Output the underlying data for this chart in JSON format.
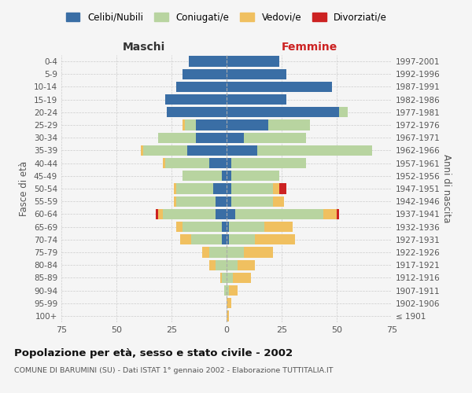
{
  "age_groups": [
    "100+",
    "95-99",
    "90-94",
    "85-89",
    "80-84",
    "75-79",
    "70-74",
    "65-69",
    "60-64",
    "55-59",
    "50-54",
    "45-49",
    "40-44",
    "35-39",
    "30-34",
    "25-29",
    "20-24",
    "15-19",
    "10-14",
    "5-9",
    "0-4"
  ],
  "birth_years": [
    "≤ 1901",
    "1902-1906",
    "1907-1911",
    "1912-1916",
    "1917-1921",
    "1922-1926",
    "1927-1931",
    "1932-1936",
    "1937-1941",
    "1942-1946",
    "1947-1951",
    "1952-1956",
    "1957-1961",
    "1962-1966",
    "1967-1971",
    "1972-1976",
    "1977-1981",
    "1982-1986",
    "1987-1991",
    "1992-1996",
    "1997-2001"
  ],
  "males": {
    "celibi": [
      0,
      0,
      0,
      0,
      0,
      0,
      2,
      2,
      5,
      5,
      6,
      2,
      8,
      18,
      14,
      14,
      27,
      28,
      23,
      20,
      17
    ],
    "coniugati": [
      0,
      0,
      1,
      2,
      5,
      8,
      14,
      18,
      24,
      18,
      17,
      18,
      20,
      20,
      17,
      5,
      0,
      0,
      0,
      0,
      0
    ],
    "vedovi": [
      0,
      0,
      0,
      1,
      3,
      3,
      5,
      3,
      2,
      1,
      1,
      0,
      1,
      1,
      0,
      1,
      0,
      0,
      0,
      0,
      0
    ],
    "divorziati": [
      0,
      0,
      0,
      0,
      0,
      0,
      0,
      0,
      1,
      0,
      0,
      0,
      0,
      0,
      0,
      0,
      0,
      0,
      0,
      0,
      0
    ]
  },
  "females": {
    "nubili": [
      0,
      0,
      0,
      0,
      0,
      0,
      1,
      1,
      4,
      2,
      2,
      2,
      2,
      14,
      8,
      19,
      51,
      27,
      48,
      27,
      24
    ],
    "coniugate": [
      0,
      0,
      1,
      3,
      5,
      8,
      12,
      16,
      40,
      19,
      19,
      22,
      34,
      52,
      28,
      19,
      4,
      0,
      0,
      0,
      0
    ],
    "vedove": [
      1,
      2,
      4,
      8,
      8,
      13,
      18,
      13,
      6,
      5,
      3,
      0,
      0,
      0,
      0,
      0,
      0,
      0,
      0,
      0,
      0
    ],
    "divorziate": [
      0,
      0,
      0,
      0,
      0,
      0,
      0,
      0,
      1,
      0,
      3,
      0,
      0,
      0,
      0,
      0,
      0,
      0,
      0,
      0,
      0
    ]
  },
  "colors": {
    "celibi": "#3a6ea5",
    "coniugati": "#b8d4a0",
    "vedovi": "#f0c060",
    "divorziati": "#cc2222"
  },
  "xlim": 75,
  "title": "Popolazione per età, sesso e stato civile - 2002",
  "subtitle": "COMUNE DI BARUMINI (SU) - Dati ISTAT 1° gennaio 2002 - Elaborazione TUTTITALIA.IT",
  "ylabel_left": "Fasce di età",
  "ylabel_right": "Anni di nascita",
  "xlabel_maschi": "Maschi",
  "xlabel_femmine": "Femmine",
  "legend_labels": [
    "Celibi/Nubili",
    "Coniugati/e",
    "Vedovi/e",
    "Divorziati/e"
  ],
  "bg_color": "#f5f5f5",
  "grid_color": "#cccccc"
}
